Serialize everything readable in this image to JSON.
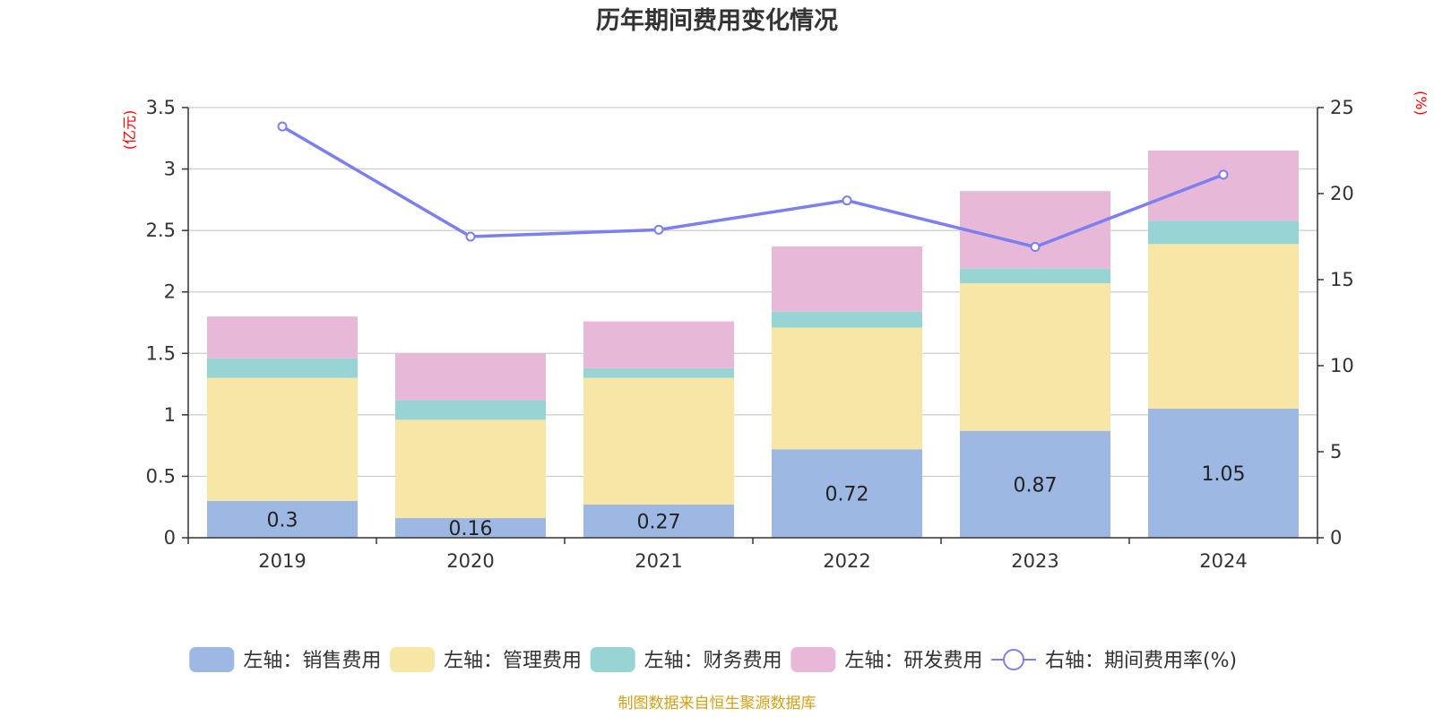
{
  "title": "历年期间费用变化情况",
  "source": "制图数据来自恒生聚源数据库",
  "left_unit": "(亿元)",
  "right_unit": "(%)",
  "chart_data": {
    "type": "bar",
    "stacked": true,
    "categories": [
      "2019",
      "2020",
      "2021",
      "2022",
      "2023",
      "2024"
    ],
    "series": [
      {
        "name": "左轴：销售费用",
        "axis": "left",
        "color": "#9db8e3",
        "values": [
          0.3,
          0.16,
          0.27,
          0.72,
          0.87,
          1.05
        ],
        "labels": [
          "0.3",
          "0.16",
          "0.27",
          "0.72",
          "0.87",
          "1.05"
        ]
      },
      {
        "name": "左轴：管理费用",
        "axis": "left",
        "color": "#f8e6a6",
        "values": [
          1.0,
          0.8,
          1.03,
          0.99,
          1.2,
          1.34
        ]
      },
      {
        "name": "左轴：财务费用",
        "axis": "left",
        "color": "#98d4d4",
        "values": [
          0.16,
          0.16,
          0.08,
          0.13,
          0.12,
          0.19
        ]
      },
      {
        "name": "左轴：研发费用",
        "axis": "left",
        "color": "#e8b8d8",
        "values": [
          0.34,
          0.38,
          0.38,
          0.53,
          0.63,
          0.57
        ]
      }
    ],
    "line_series": {
      "name": "右轴：期间费用率(%)",
      "axis": "right",
      "color": "#7b7ff0",
      "values": [
        23.9,
        17.5,
        17.9,
        19.6,
        16.9,
        21.1
      ]
    },
    "left_axis": {
      "min": 0,
      "max": 3.5,
      "ticks": [
        0,
        0.5,
        1,
        1.5,
        2,
        2.5,
        3,
        3.5
      ],
      "tick_labels": [
        "0",
        "0.5",
        "1",
        "1.5",
        "2",
        "2.5",
        "3",
        "3.5"
      ]
    },
    "right_axis": {
      "min": 0,
      "max": 25,
      "ticks": [
        0,
        5,
        10,
        15,
        20,
        25
      ],
      "tick_labels": [
        "0",
        "5",
        "10",
        "15",
        "20",
        "25"
      ]
    },
    "grid": true,
    "legend_position": "bottom"
  }
}
